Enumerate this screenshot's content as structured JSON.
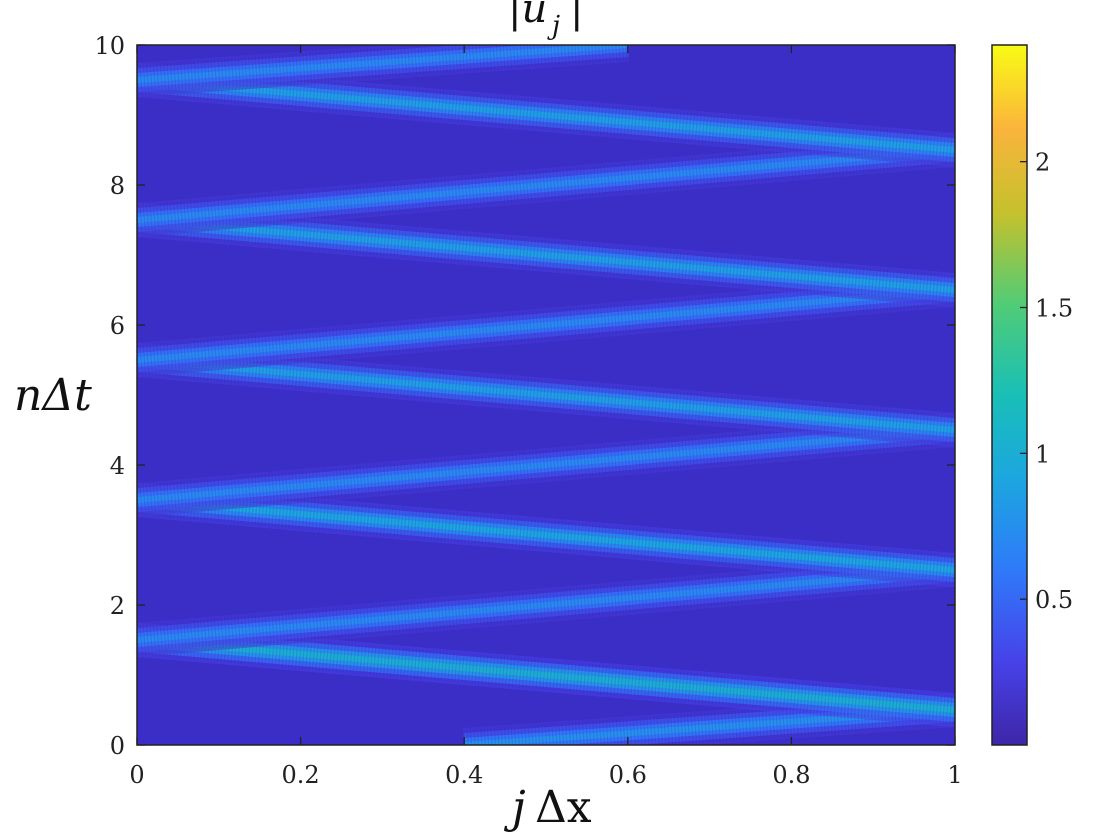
{
  "chart_data": {
    "type": "heatmap",
    "title": "|u_j|",
    "xlabel": "jΔx",
    "ylabel": "nΔt",
    "xlim": [
      0,
      1
    ],
    "ylim": [
      0,
      10
    ],
    "x_ticks": [
      "0",
      "0.2",
      "0.4",
      "0.6",
      "0.8",
      "1"
    ],
    "x_tick_values": [
      0,
      0.2,
      0.4,
      0.6,
      0.8,
      1
    ],
    "y_ticks": [
      "0",
      "2",
      "4",
      "6",
      "8",
      "10"
    ],
    "y_tick_values": [
      0,
      2,
      4,
      6,
      8,
      10
    ],
    "colorbar": {
      "range": [
        0,
        2.4
      ],
      "ticks": [
        "0.5",
        "1",
        "1.5",
        "2"
      ],
      "tick_values": [
        0.5,
        1,
        1.5,
        2
      ],
      "colormap": "parula"
    },
    "bands": [
      {
        "name": "right-moving",
        "x": [
          0.4,
          1.0
        ],
        "y": [
          0.0,
          0.5
        ],
        "peak": 0.75
      },
      {
        "name": "left-moving",
        "x": [
          0.0,
          1.0
        ],
        "y": [
          1.5,
          0.5
        ],
        "peak": 1.0
      },
      {
        "name": "right-moving",
        "x": [
          0.0,
          1.0
        ],
        "y": [
          1.5,
          2.5
        ],
        "peak": 0.7
      },
      {
        "name": "left-moving",
        "x": [
          0.0,
          1.0
        ],
        "y": [
          3.5,
          2.5
        ],
        "peak": 0.9
      },
      {
        "name": "right-moving",
        "x": [
          0.0,
          1.0
        ],
        "y": [
          3.5,
          4.5
        ],
        "peak": 0.7
      },
      {
        "name": "left-moving",
        "x": [
          0.0,
          1.0
        ],
        "y": [
          5.5,
          4.5
        ],
        "peak": 0.85
      },
      {
        "name": "right-moving",
        "x": [
          0.0,
          1.0
        ],
        "y": [
          5.5,
          6.5
        ],
        "peak": 0.7
      },
      {
        "name": "left-moving",
        "x": [
          0.0,
          1.0
        ],
        "y": [
          7.5,
          6.5
        ],
        "peak": 0.85
      },
      {
        "name": "right-moving",
        "x": [
          0.0,
          1.0
        ],
        "y": [
          7.5,
          8.5
        ],
        "peak": 0.7
      },
      {
        "name": "left-moving",
        "x": [
          0.0,
          1.0
        ],
        "y": [
          9.5,
          8.5
        ],
        "peak": 0.85
      },
      {
        "name": "right-moving",
        "x": [
          0.0,
          0.6
        ],
        "y": [
          9.5,
          10.0
        ],
        "peak": 0.7
      }
    ],
    "background_value": 0.05
  },
  "labels": {
    "title": "|u",
    "title_sub": "j",
    "title_close": "|",
    "xlabel_j": "j",
    "xlabel_rest": "Δx",
    "ylabel": "nΔt"
  },
  "colors": {
    "background": "#3a2ec7",
    "colormap_stops": [
      "#3e26a8",
      "#4742e9",
      "#2f7af9",
      "#1ca6e0",
      "#19bfb7",
      "#51cc76",
      "#c5c12c",
      "#fab43c",
      "#f9fb15"
    ]
  }
}
